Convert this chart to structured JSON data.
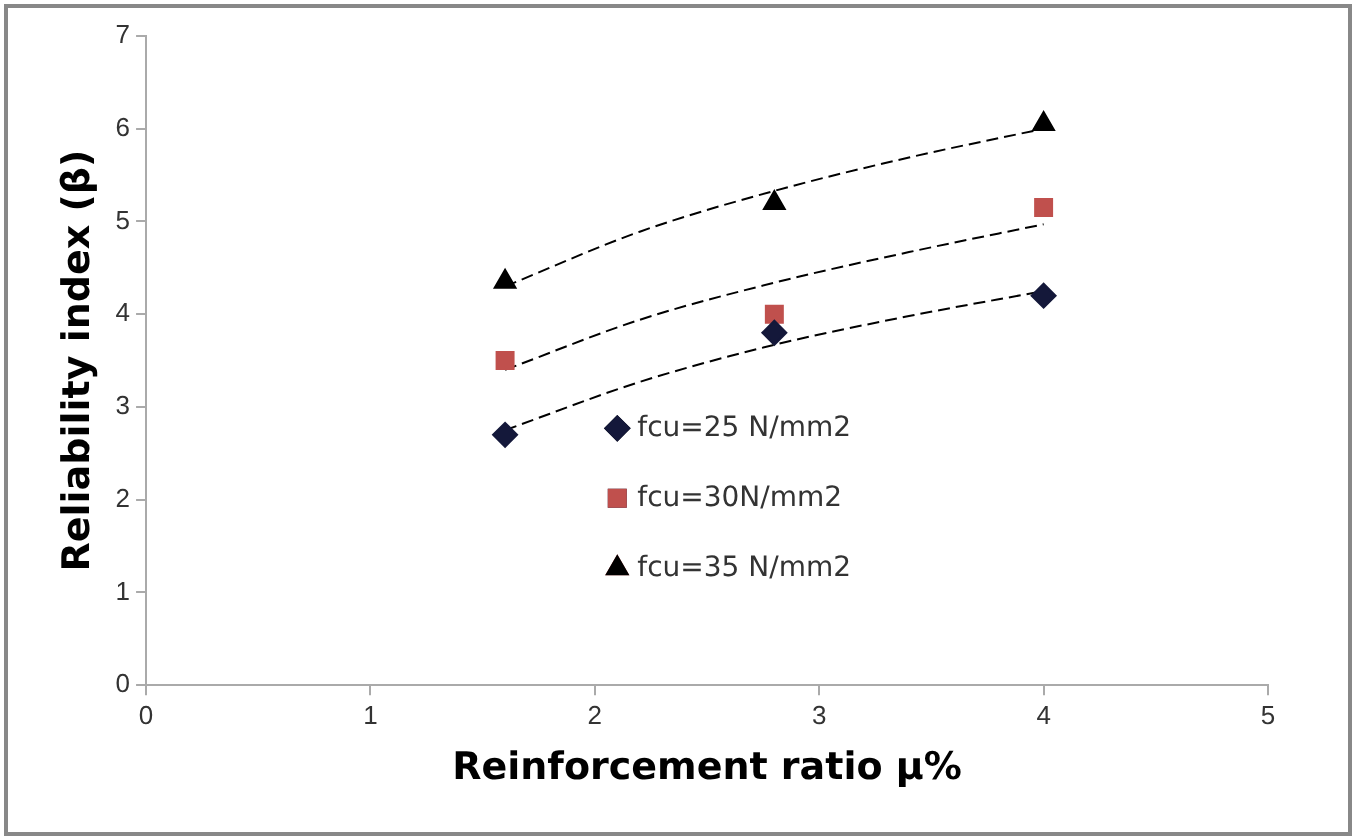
{
  "chart_data": {
    "type": "scatter",
    "xlabel": "Reinforcement ratio μ%",
    "ylabel": "Reliability index (β)",
    "xlim": [
      0,
      5
    ],
    "xticks": [
      0,
      1,
      2,
      3,
      4,
      5
    ],
    "ylim": [
      0,
      7
    ],
    "yticks": [
      0,
      1,
      2,
      3,
      4,
      5,
      6,
      7
    ],
    "grid": false,
    "legend": "bottom",
    "series": [
      {
        "name": "fcu=25 N/mm2",
        "color": "#14183a",
        "marker": "diamond",
        "x": [
          1.6,
          2.8,
          4
        ],
        "values": [
          2.7,
          3.8,
          4.2
        ]
      },
      {
        "name": "fcu=30N/mm2",
        "color": "#c0504d",
        "marker": "square",
        "x": [
          1.6,
          2.8,
          4
        ],
        "values": [
          3.5,
          4.0,
          5.15
        ]
      },
      {
        "name": "fcu=35 N/mm2",
        "color": "#000000",
        "marker": "triangle",
        "x": [
          1.6,
          2.8,
          4
        ],
        "values": [
          4.35,
          5.2,
          6.05
        ]
      },
      {
        "type": "line",
        "color": "#000000",
        "marker": "none",
        "line_style": "dashed",
        "x": [
          1.6,
          2.2,
          2.8,
          3.4,
          4
        ],
        "values": [
          2.75,
          3.27,
          3.67,
          3.98,
          4.25
        ]
      },
      {
        "type": "line",
        "color": "#000000",
        "marker": "none",
        "line_style": "dashed",
        "x": [
          1.6,
          2.2,
          2.8,
          3.4,
          4
        ],
        "values": [
          3.4,
          3.94,
          4.34,
          4.67,
          4.97
        ]
      },
      {
        "type": "line",
        "color": "#000000",
        "marker": "none",
        "line_style": "dashed",
        "x": [
          1.6,
          2.2,
          2.8,
          3.4,
          4
        ],
        "values": [
          4.3,
          4.89,
          5.33,
          5.69,
          6.0
        ]
      }
    ]
  }
}
